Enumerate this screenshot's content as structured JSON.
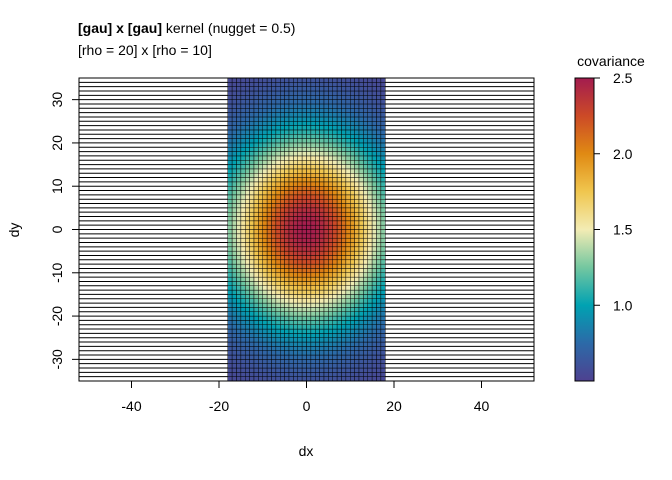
{
  "chart_data": {
    "type": "heatmap",
    "title": {
      "bold": "[gau] x [gau]",
      "rest": " kernel (nugget = 0.5)"
    },
    "subtitle": "[rho = 20] x [rho = 10]",
    "xlabel": "dx",
    "ylabel": "dy",
    "xlim": [
      -52,
      52
    ],
    "ylim": [
      -35,
      35
    ],
    "x_ticks": [
      -40,
      -20,
      0,
      20,
      40
    ],
    "y_ticks": [
      -30,
      -20,
      -10,
      0,
      10,
      20,
      30
    ],
    "tick_labels_x": [
      "-40",
      "-20",
      "0",
      "20",
      "40"
    ],
    "tick_labels_y": [
      "-30",
      "-20",
      "-10",
      "0",
      "10",
      "20",
      "30"
    ],
    "grid_x_range": [
      -17.5,
      17.5
    ],
    "grid_y_range": [
      -34.5,
      34.5
    ],
    "grid_step": 1,
    "kernel": {
      "type": "gau x gau",
      "nugget": 0.5,
      "sill": 2.0,
      "rho_x": 20,
      "rho_y": 10
    },
    "legend": {
      "title": "covariance",
      "placement": "right",
      "range": [
        0.5,
        2.5
      ],
      "ticks": [
        1.0,
        1.5,
        2.0,
        2.5
      ],
      "tick_labels": [
        "1.0",
        "1.5",
        "2.0",
        "2.5"
      ]
    },
    "colormap": [
      "#4e4190",
      "#2c6aa8",
      "#00a2b2",
      "#74c7a0",
      "#f3ecb4",
      "#f0c64f",
      "#e08a13",
      "#cc4a27",
      "#a31c4f"
    ]
  }
}
